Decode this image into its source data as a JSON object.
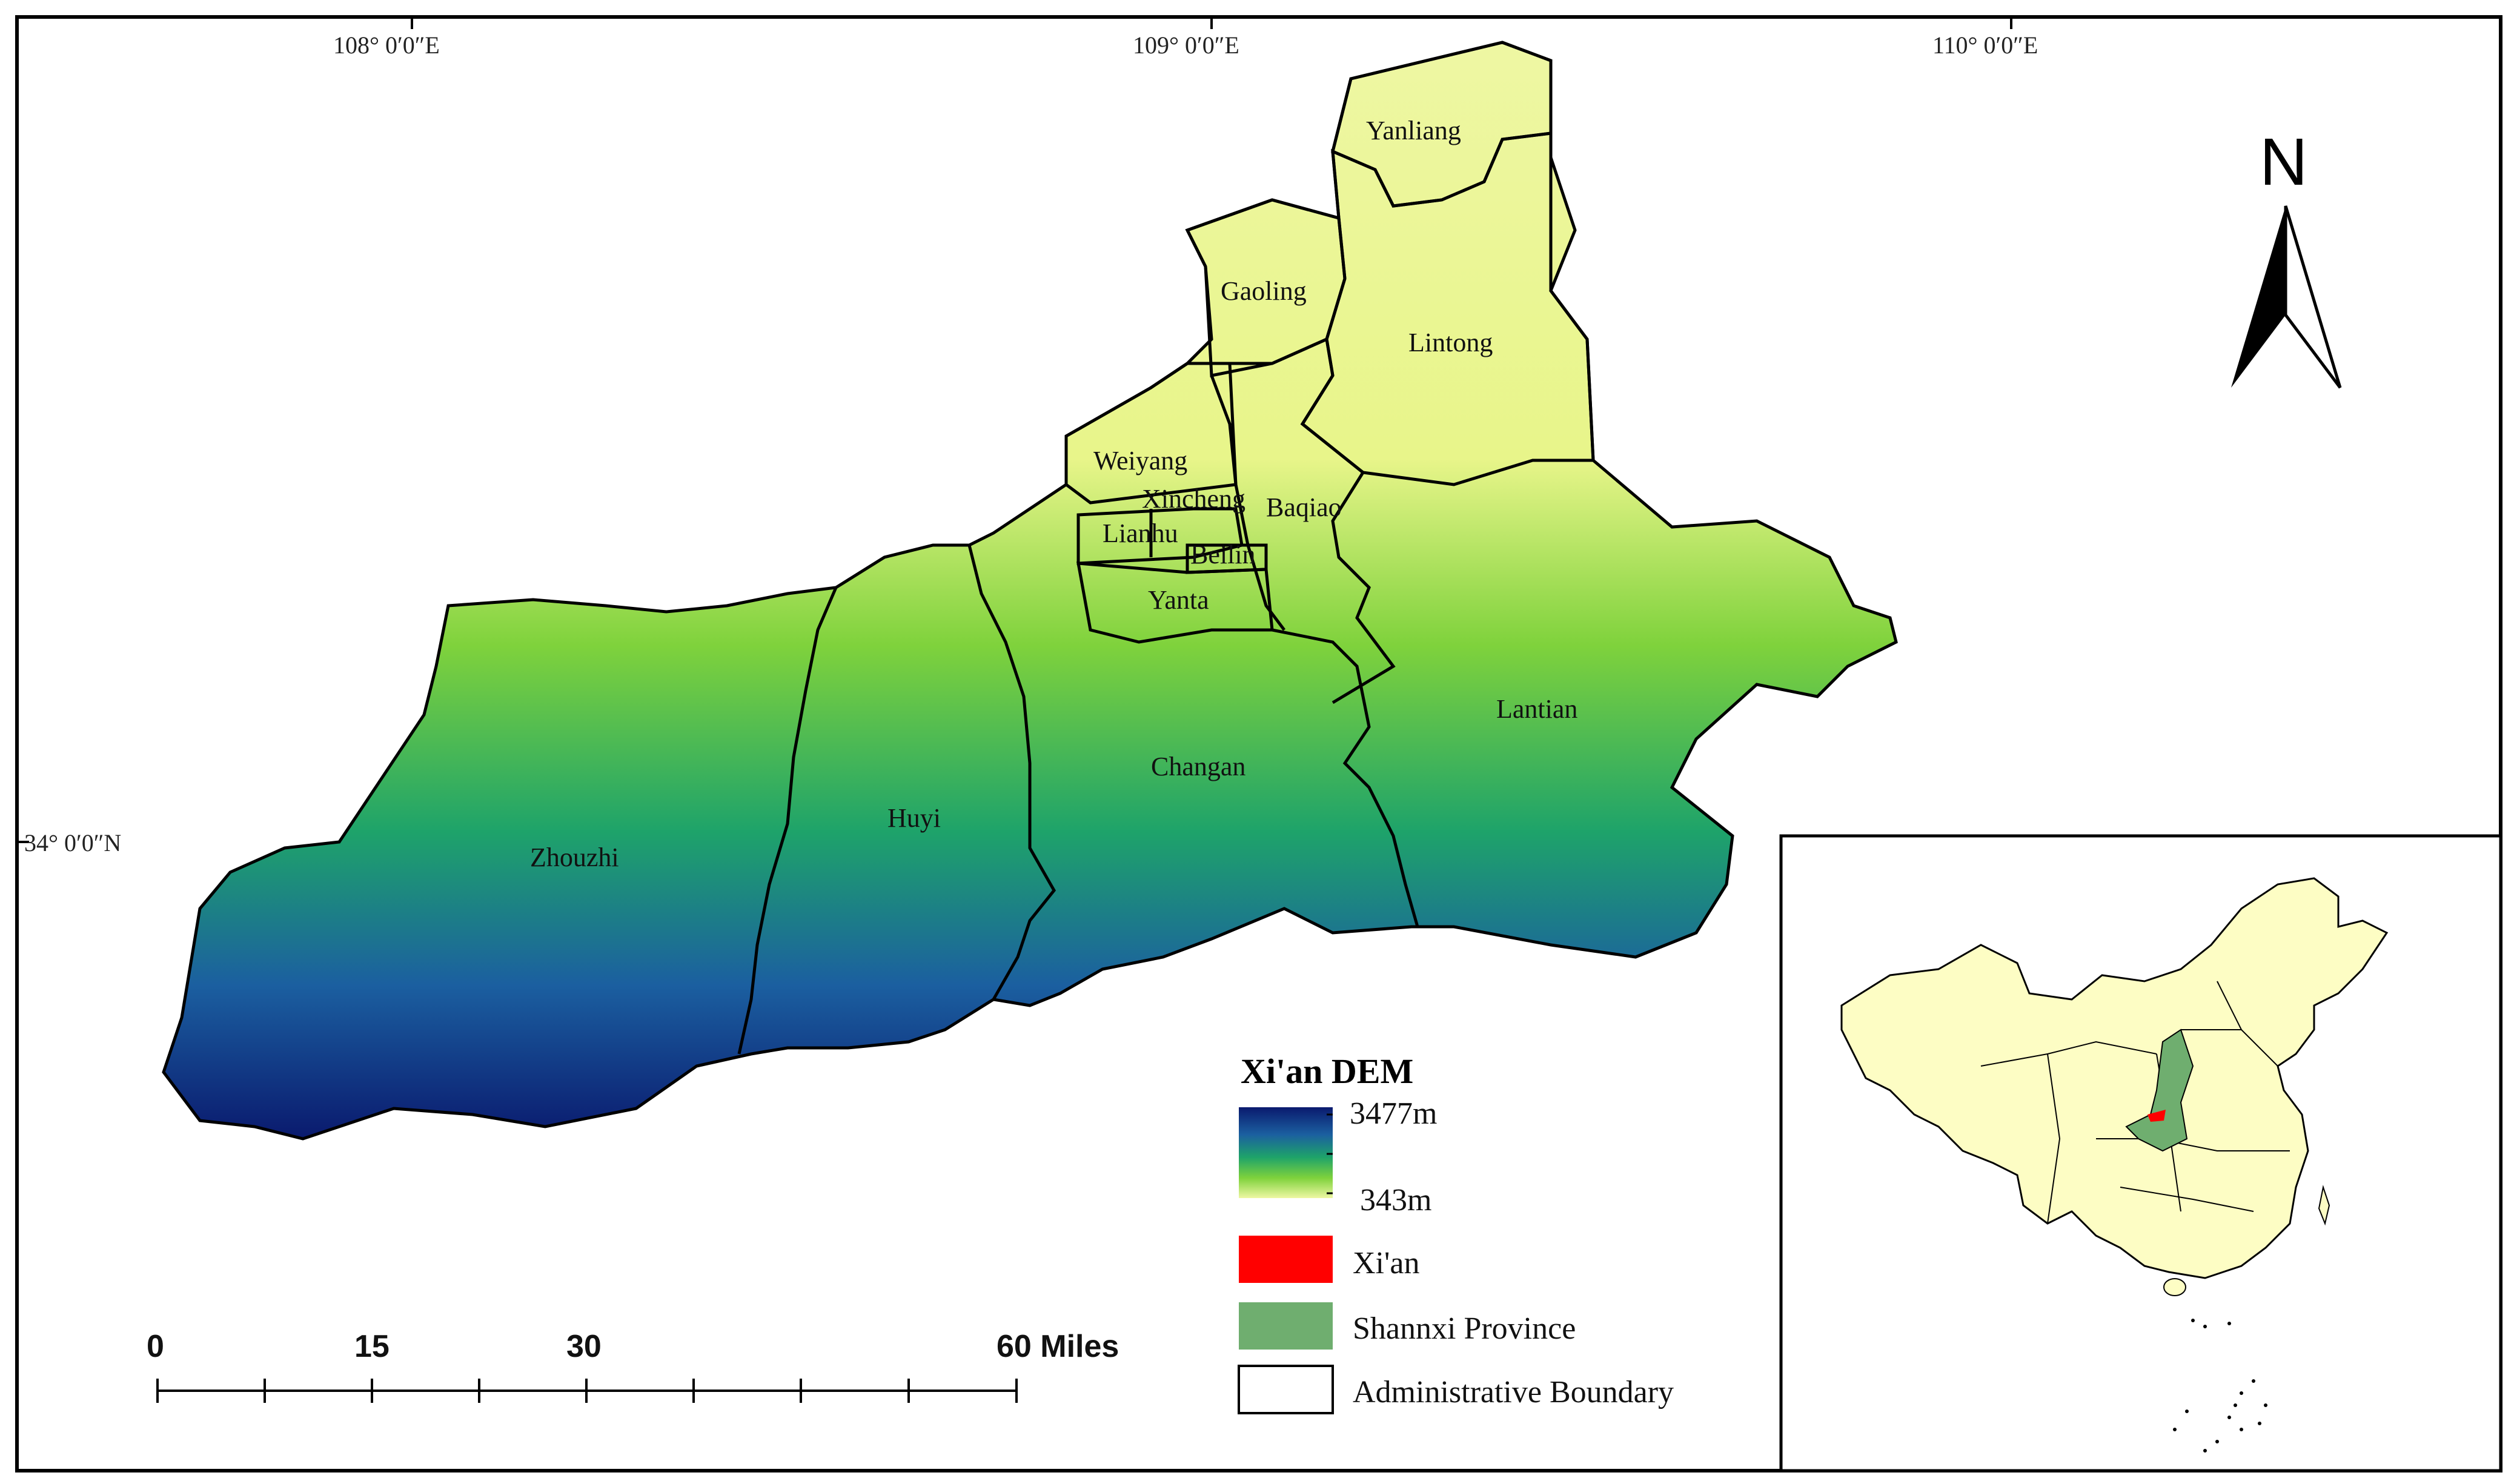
{
  "map": {
    "coords": {
      "lon_108": "108° 0′0″E",
      "lon_109": "109° 0′0″E",
      "lon_110": "110° 0′0″E",
      "lat_34": "34° 0′0″N"
    },
    "north_arrow": {
      "label": "N",
      "icon": "north-arrow-icon"
    },
    "districts": [
      "Yanliang",
      "Gaoling",
      "Lintong",
      "Weiyang",
      "Xincheng",
      "Baqiao",
      "Lianhu",
      "Beilin",
      "Yanta",
      "Lantian",
      "Changan",
      "Huyi",
      "Zhouzhi"
    ],
    "legend": {
      "title": "Xi'an DEM",
      "dem_max": "3477m",
      "dem_min": "343m",
      "gradient_colors": [
        "#0a1a6e",
        "#1b5fa0",
        "#1ea36a",
        "#7fd23c",
        "#eef7a3"
      ],
      "items": [
        {
          "label": "Xi'an",
          "color": "#ff0000"
        },
        {
          "label": "Shannxi Province",
          "color": "#6fae6f"
        },
        {
          "label": "Administrative Boundary",
          "color": "#ffffff"
        }
      ]
    },
    "scale_bar": {
      "labels": [
        "0",
        "15",
        "30",
        "60 Miles"
      ]
    },
    "inset": {
      "land_color": "#fdfdc4",
      "province_color": "#6fae6f",
      "city_color": "#ff0000"
    }
  }
}
